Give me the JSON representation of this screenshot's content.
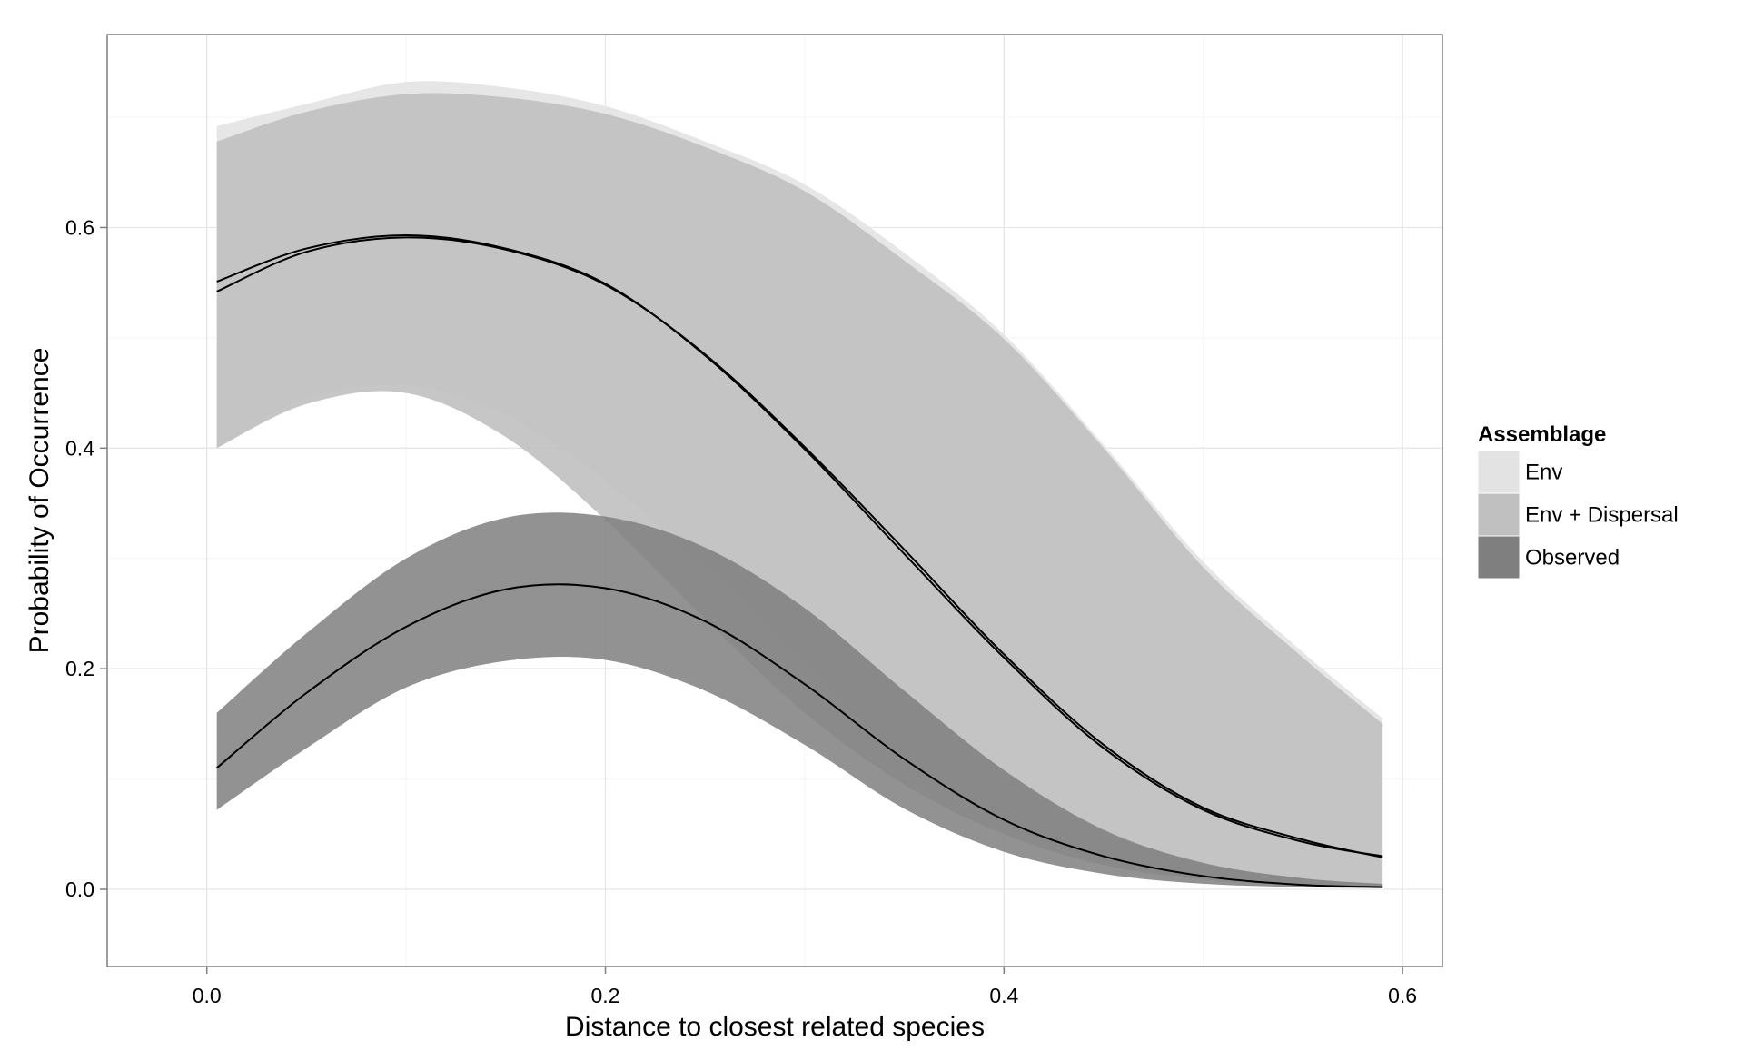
{
  "chart_data": {
    "type": "area",
    "xlabel": "Distance to closest related species",
    "ylabel": "Probability of Occurrence",
    "xlim": [
      -0.05,
      0.62
    ],
    "ylim": [
      -0.07,
      0.775
    ],
    "x_ticks": [
      0.0,
      0.2,
      0.4,
      0.6
    ],
    "x_tick_labels": [
      "0.0",
      "0.2",
      "0.4",
      "0.6"
    ],
    "y_ticks": [
      0.0,
      0.2,
      0.4,
      0.6
    ],
    "y_tick_labels": [
      "0.0",
      "0.2",
      "0.4",
      "0.6"
    ],
    "grid": true,
    "legend": {
      "title": "Assemblage",
      "placement": "right",
      "entries": [
        "Env",
        "Env + Dispersal",
        "Observed"
      ]
    },
    "x": [
      0.005,
      0.05,
      0.1,
      0.15,
      0.2,
      0.25,
      0.3,
      0.35,
      0.4,
      0.45,
      0.5,
      0.55,
      0.59
    ],
    "series": [
      {
        "name": "Env",
        "fill": "#e3e3e3",
        "line": [
          0.542,
          0.578,
          0.591,
          0.58,
          0.548,
          0.485,
          0.401,
          0.308,
          0.213,
          0.131,
          0.074,
          0.045,
          0.029
        ],
        "lower": [
          0.4,
          0.445,
          0.457,
          0.43,
          0.37,
          0.29,
          0.2,
          0.12,
          0.06,
          0.025,
          0.01,
          0.004,
          0.002
        ],
        "upper": [
          0.692,
          0.712,
          0.732,
          0.727,
          0.71,
          0.678,
          0.639,
          0.577,
          0.503,
          0.403,
          0.297,
          0.215,
          0.155
        ]
      },
      {
        "name": "Env + Dispersal",
        "fill": "#c0c0c0",
        "line": [
          0.551,
          0.581,
          0.593,
          0.581,
          0.549,
          0.484,
          0.399,
          0.304,
          0.21,
          0.128,
          0.072,
          0.043,
          0.03
        ],
        "lower": [
          0.4,
          0.44,
          0.45,
          0.41,
          0.335,
          0.245,
          0.16,
          0.095,
          0.05,
          0.022,
          0.009,
          0.004,
          0.002
        ],
        "upper": [
          0.678,
          0.705,
          0.721,
          0.718,
          0.703,
          0.673,
          0.633,
          0.57,
          0.499,
          0.4,
          0.292,
          0.21,
          0.15
        ]
      },
      {
        "name": "Observed",
        "fill": "#7f7f7f",
        "line": [
          0.11,
          0.178,
          0.238,
          0.272,
          0.273,
          0.243,
          0.186,
          0.118,
          0.063,
          0.03,
          0.012,
          0.004,
          0.002
        ],
        "lower": [
          0.072,
          0.128,
          0.183,
          0.207,
          0.208,
          0.18,
          0.131,
          0.073,
          0.034,
          0.014,
          0.005,
          0.002,
          0.001
        ],
        "upper": [
          0.16,
          0.232,
          0.3,
          0.337,
          0.338,
          0.31,
          0.255,
          0.18,
          0.108,
          0.054,
          0.024,
          0.01,
          0.005
        ]
      }
    ]
  }
}
